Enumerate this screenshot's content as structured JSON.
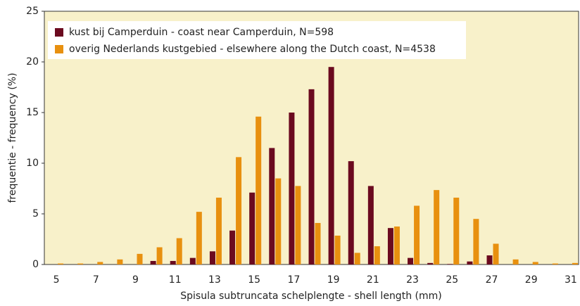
{
  "chart_data": {
    "type": "bar",
    "x_label": "Spisula subtruncata schelplengte   -   shell length (mm)",
    "y_label": "frequentie  - frequency (%)",
    "categories": [
      "5",
      null,
      "7",
      null,
      "9",
      null,
      "11",
      null,
      "13",
      null,
      "15",
      null,
      "17",
      null,
      "19",
      null,
      "21",
      null,
      "23",
      null,
      "25",
      null,
      "27",
      null,
      "29",
      null,
      "31"
    ],
    "series": [
      {
        "name": "kust bij Camperduin - coast near Camperduin, N=598",
        "color": "#6b0a1f",
        "values": [
          0,
          0,
          0,
          0,
          0,
          0.35,
          0.35,
          0.65,
          1.3,
          3.35,
          7.1,
          11.5,
          15.0,
          17.3,
          19.5,
          10.2,
          7.75,
          3.6,
          0.65,
          0.15,
          0.05,
          0.3,
          0.9,
          0,
          0,
          0,
          0
        ]
      },
      {
        "name": "overig Nederlands kustgebied - elsewhere along the Dutch coast, N=4538",
        "color": "#e8900f",
        "values": [
          0.1,
          0.1,
          0.25,
          0.5,
          1.05,
          1.7,
          2.6,
          5.2,
          6.6,
          10.6,
          14.6,
          8.5,
          7.75,
          4.1,
          2.85,
          1.15,
          1.8,
          3.75,
          5.8,
          7.35,
          6.6,
          4.5,
          2.05,
          0.5,
          0.25,
          0.1,
          0.15
        ]
      }
    ],
    "ylim": [
      0,
      25
    ],
    "yticks": [
      0,
      5,
      10,
      15,
      20,
      25
    ],
    "grid": false
  }
}
